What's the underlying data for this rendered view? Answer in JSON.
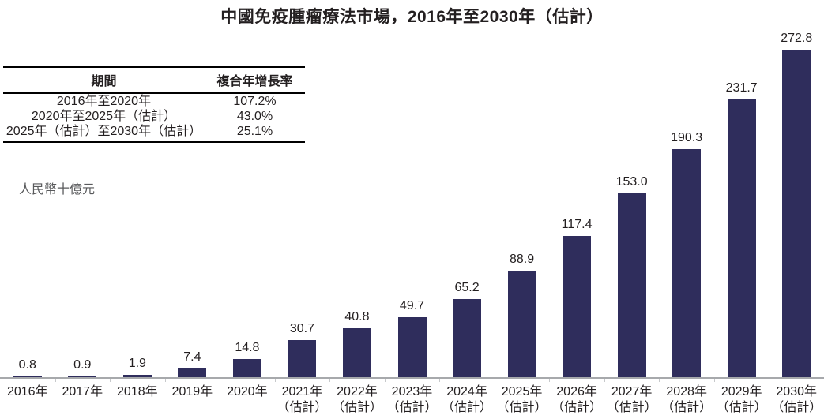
{
  "title": "中國免疫腫瘤療法市場，2016年至2030年（估計）",
  "unit_label": "人民幣十億元",
  "cagr_table": {
    "header_period": "期間",
    "header_cagr": "複合年增長率",
    "rows": [
      {
        "period": "2016年至2020年",
        "cagr": "107.2%"
      },
      {
        "period": "2020年至2025年（估計）",
        "cagr": "43.0%"
      },
      {
        "period": "2025年（估計）至2030年（估計）",
        "cagr": "25.1%"
      }
    ]
  },
  "chart_data": {
    "type": "bar",
    "title": "中國免疫腫瘤療法市場，2016年至2030年（估計）",
    "xlabel": "",
    "ylabel": "人民幣十億元",
    "ylim": [
      0,
      280
    ],
    "grid": false,
    "legend_position": "none",
    "categories": [
      "2016年",
      "2017年",
      "2018年",
      "2019年",
      "2020年",
      "2021年\n（估計）",
      "2022年\n（估計）",
      "2023年\n（估計）",
      "2024年\n（估計）",
      "2025年\n（估計）",
      "2026年\n（估計）",
      "2027年\n（估計）",
      "2028年\n（估計）",
      "2029年\n（估計）",
      "2030年\n（估計）"
    ],
    "values": [
      0.8,
      0.9,
      1.9,
      7.4,
      14.8,
      30.7,
      40.8,
      49.7,
      65.2,
      88.9,
      117.4,
      153.0,
      190.3,
      231.7,
      272.8
    ],
    "value_labels": [
      "0.8",
      "0.9",
      "1.9",
      "7.4",
      "14.8",
      "30.7",
      "40.8",
      "49.7",
      "65.2",
      "88.9",
      "117.4",
      "153.0",
      "190.3",
      "231.7",
      "272.8"
    ]
  },
  "colors": {
    "bar": "#2F2D5C",
    "axis_line": "#A7A9AC",
    "text": "#231F20",
    "unit_text": "#58595B",
    "tick": "#C7C9CB"
  }
}
